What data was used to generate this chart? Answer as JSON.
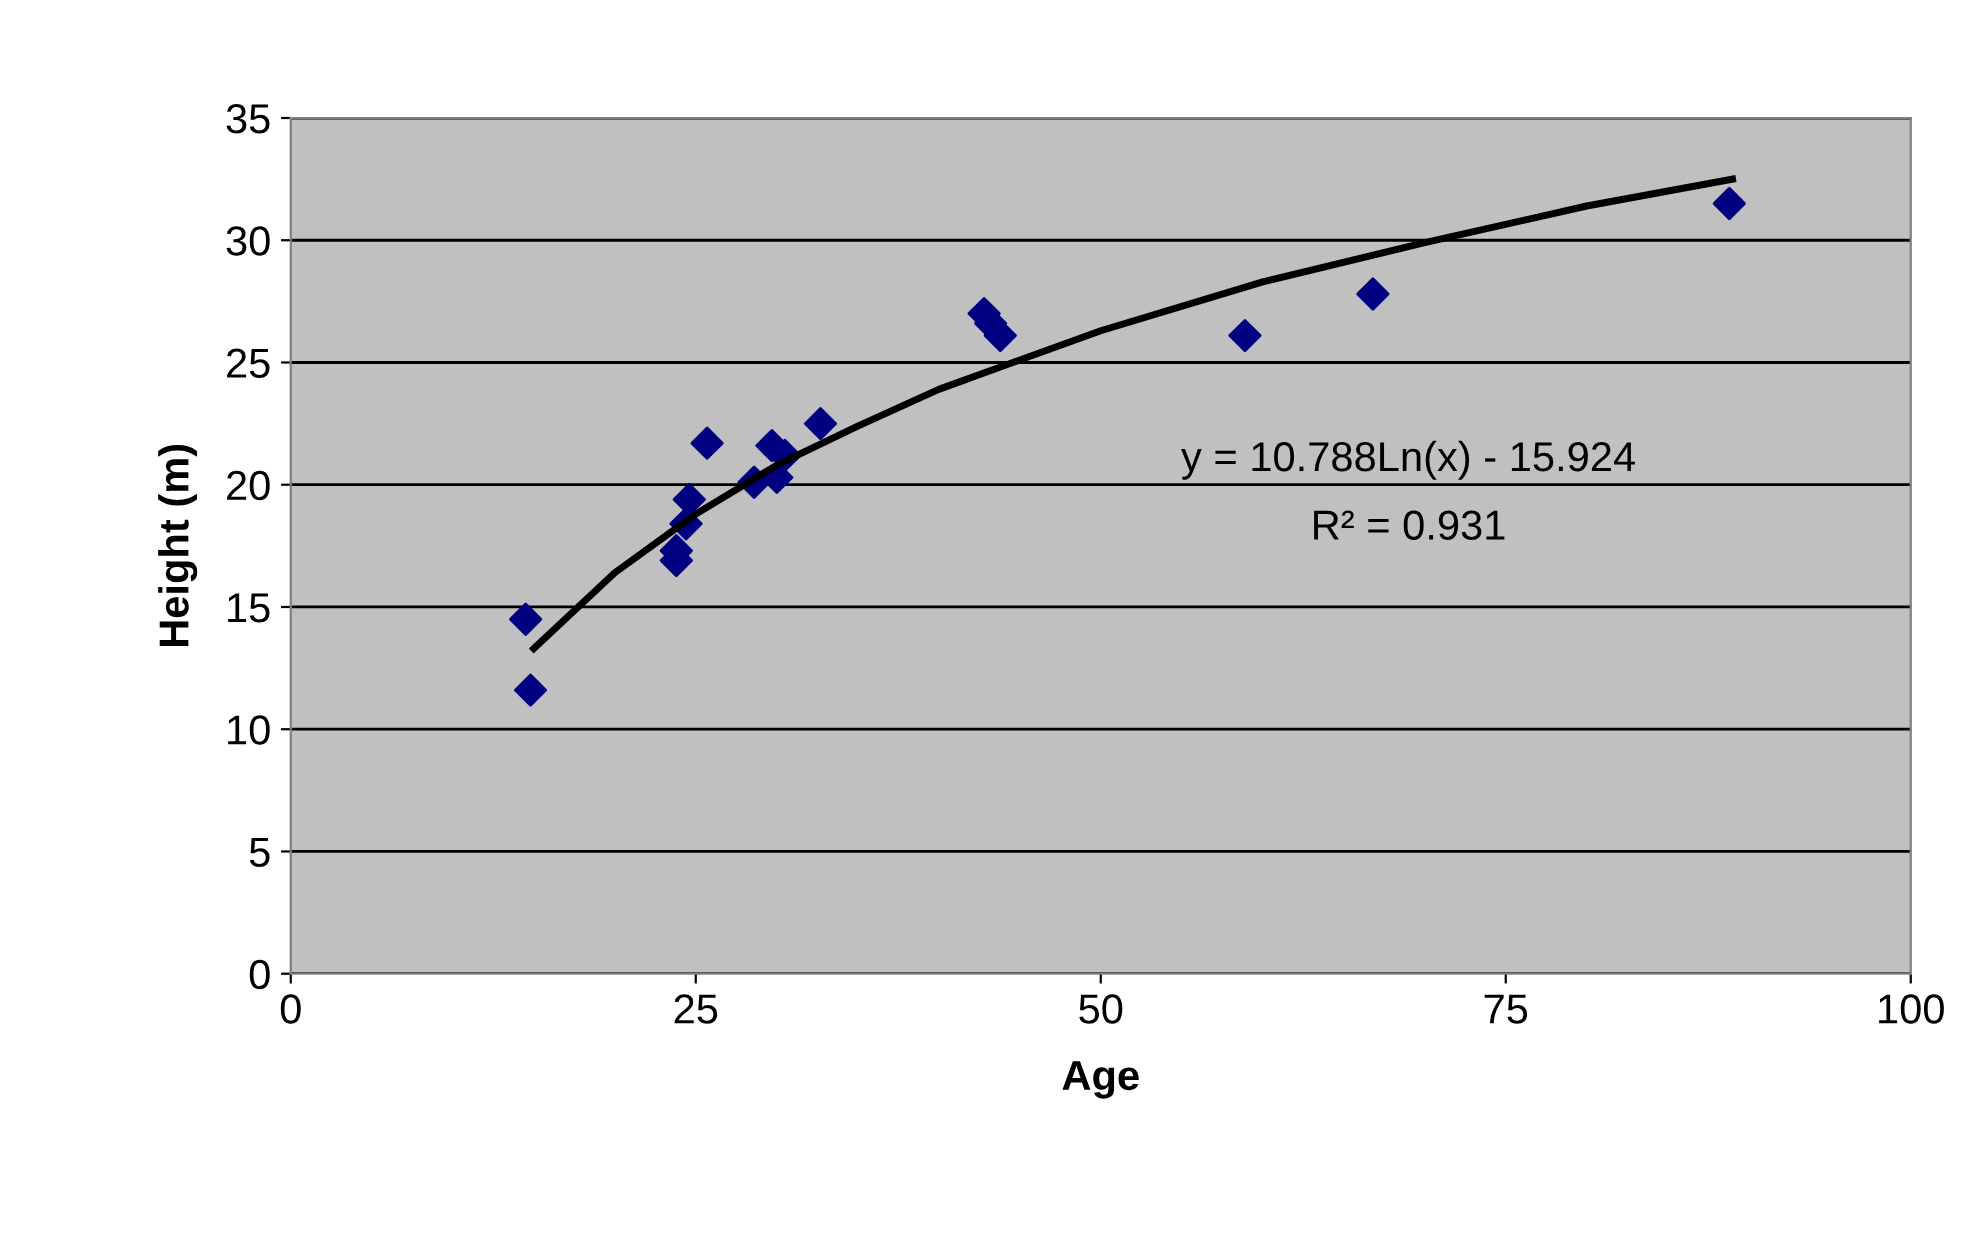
{
  "chart_data": {
    "type": "scatter",
    "xlabel": "Age",
    "ylabel": "Height (m)",
    "xlim": [
      0,
      100
    ],
    "xticks": [
      0,
      25,
      50,
      75,
      100
    ],
    "ylim": [
      0,
      35
    ],
    "yticks": [
      0,
      5,
      10,
      15,
      20,
      25,
      30,
      35
    ],
    "grid": "y",
    "series": [
      {
        "color": "#000080",
        "marker": "diamond",
        "x": [
          14.5,
          14.8,
          23.8,
          23.8,
          24.6,
          24.4,
          25.7,
          28.6,
          29.7,
          30.0,
          30.5,
          32.7,
          42.8,
          43.2,
          43.8,
          58.9,
          66.8,
          88.8
        ],
        "values": [
          14.5,
          11.6,
          16.9,
          17.3,
          19.4,
          18.4,
          21.7,
          20.1,
          21.6,
          20.3,
          21.2,
          22.5,
          27.0,
          26.6,
          26.1,
          26.1,
          27.8,
          31.5
        ]
      },
      {
        "type": "line",
        "color": "#000000",
        "marker": "none",
        "line_style": "solid",
        "x": [
          15,
          20,
          25,
          30,
          35,
          40,
          50,
          60,
          70,
          80,
          89
        ],
        "values": [
          13.3,
          16.4,
          18.8,
          20.8,
          22.4,
          23.9,
          26.3,
          28.3,
          29.9,
          31.4,
          32.5
        ]
      }
    ],
    "annotations": [
      "y = 10.788Ln(x) - 15.924",
      "R² = 0.931"
    ]
  }
}
